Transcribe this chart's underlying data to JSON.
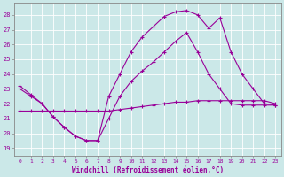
{
  "xlabel": "Windchill (Refroidissement éolien,°C)",
  "bg_color": "#cbe8e8",
  "line_color": "#990099",
  "xlim": [
    -0.5,
    23.5
  ],
  "ylim": [
    18.5,
    28.8
  ],
  "yticks": [
    19,
    20,
    21,
    22,
    23,
    24,
    25,
    26,
    27,
    28
  ],
  "xticks": [
    0,
    1,
    2,
    3,
    4,
    5,
    6,
    7,
    8,
    9,
    10,
    11,
    12,
    13,
    14,
    15,
    16,
    17,
    18,
    19,
    20,
    21,
    22,
    23
  ],
  "series1_x": [
    0,
    1,
    2,
    3,
    4,
    5,
    6,
    7,
    8,
    9,
    10,
    11,
    12,
    13,
    14,
    15,
    16,
    17,
    18,
    19,
    20,
    21,
    22,
    23
  ],
  "series1_y": [
    23.0,
    22.5,
    22.0,
    21.1,
    20.4,
    19.8,
    19.5,
    19.5,
    22.5,
    24.0,
    25.5,
    26.5,
    27.2,
    27.9,
    28.2,
    28.3,
    28.0,
    27.1,
    27.8,
    25.5,
    24.0,
    23.0,
    22.0,
    21.9
  ],
  "series2_x": [
    0,
    1,
    2,
    3,
    4,
    5,
    6,
    7,
    8,
    9,
    10,
    11,
    12,
    13,
    14,
    15,
    16,
    17,
    18,
    19,
    20,
    21,
    22,
    23
  ],
  "series2_y": [
    23.2,
    22.6,
    22.0,
    21.1,
    20.4,
    19.8,
    19.5,
    19.5,
    21.0,
    22.5,
    23.5,
    24.2,
    24.8,
    25.5,
    26.2,
    26.8,
    25.5,
    24.0,
    23.0,
    22.0,
    21.9,
    21.9,
    21.9,
    21.9
  ],
  "series3_x": [
    0,
    1,
    2,
    3,
    4,
    5,
    6,
    7,
    8,
    9,
    10,
    11,
    12,
    13,
    14,
    15,
    16,
    17,
    18,
    19,
    20,
    21,
    22,
    23
  ],
  "series3_y": [
    21.5,
    21.5,
    21.5,
    21.5,
    21.5,
    21.5,
    21.5,
    21.5,
    21.5,
    21.6,
    21.7,
    21.8,
    21.9,
    22.0,
    22.1,
    22.1,
    22.2,
    22.2,
    22.2,
    22.2,
    22.2,
    22.2,
    22.2,
    22.0
  ]
}
